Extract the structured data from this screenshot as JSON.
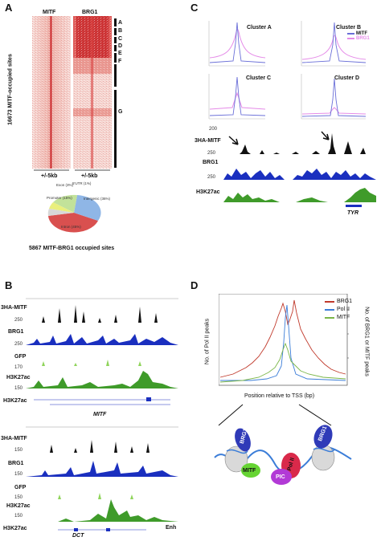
{
  "panels": {
    "A": {
      "letter": "A",
      "columns": [
        "MITF",
        "BRG1"
      ],
      "clusters": [
        "A",
        "B",
        "C",
        "D",
        "E",
        "F",
        "G"
      ],
      "ylabel": "16673 MITF-occupied sites",
      "xlabels": [
        "+/-5kb",
        "+/-5kb"
      ],
      "pie_title": "5867 MITF-BRG1 occupied sites",
      "pie_labels": [
        "Exon (3%)",
        "5'UTR (1%)",
        "Promoter (15%)",
        "Intergenic (36%)",
        "Intron (45%)"
      ]
    },
    "B": {
      "letter": "B",
      "top_tracks": [
        "3HA-MITF",
        "BRG1",
        "GFP",
        "H3K27ac",
        "H3K27ac"
      ],
      "top_scales": [
        "250",
        "250",
        "170",
        "150"
      ],
      "top_gene": "MITF",
      "bottom_tracks": [
        "3HA-MITF",
        "BRG1",
        "GFP",
        "H3K27ac",
        "H3K27ac"
      ],
      "bottom_scales": [
        "150",
        "150",
        "150",
        "150"
      ],
      "bottom_gene": "DCT",
      "enh_label": "Enh"
    },
    "C": {
      "letter": "C",
      "profiles": [
        "Cluster A",
        "Cluster B",
        "Cluster C",
        "Cluster D"
      ],
      "legend": [
        {
          "name": "MITF",
          "color": "#6a6fd8"
        },
        {
          "name": "BRG1",
          "color": "#e58be8"
        }
      ],
      "tracks": [
        "3HA-MITF",
        "BRG1",
        "H3K27ac"
      ],
      "scales": [
        "200",
        "250",
        "250"
      ],
      "gene": "TYR"
    },
    "D": {
      "letter": "D",
      "legend": [
        {
          "name": "BRG1",
          "color": "#c0392b"
        },
        {
          "name": "Pol II",
          "color": "#3b7dd8"
        },
        {
          "name": "MITF",
          "color": "#7ab648"
        }
      ],
      "ylabel_left": "No. of Pol II peaks",
      "ylabel_right": "No. of BRG1 or MITF peaks",
      "xlabel": "Position relative to TSS (bp)",
      "schematic": [
        "BRG1",
        "MITF",
        "Pol II",
        "PIC",
        "BRG1"
      ]
    }
  },
  "colors": {
    "heat": "#d8363a",
    "heat_light": "#f6d3cf",
    "mitf_track": "#111111",
    "brg1_track": "#1a2fbf",
    "gfp_track": "#8fd45a",
    "h3k27ac_track": "#3f9b2a",
    "pie": [
      "#e9ef7d",
      "#d8d8d8",
      "#c2e29a",
      "#8fb6e6",
      "#d9504f"
    ]
  }
}
